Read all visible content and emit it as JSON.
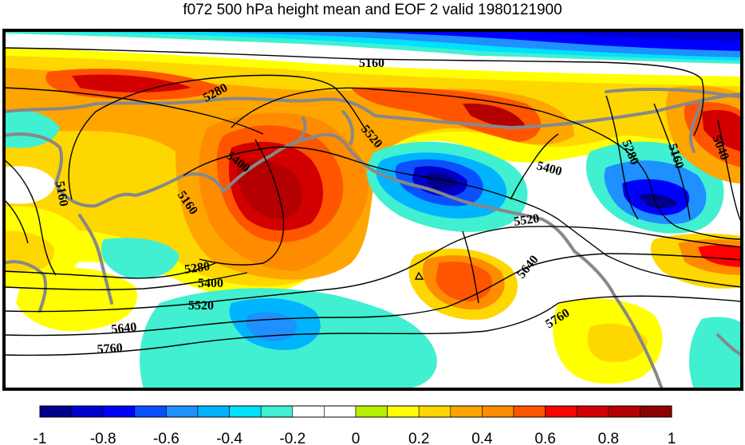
{
  "title": "f072 500 hPa height mean and EOF 2 valid 1980121900",
  "colorbar": {
    "ticks": [
      "-1",
      "-0.8",
      "-0.6",
      "-0.4",
      "-0.2",
      "0",
      "0.2",
      "0.4",
      "0.6",
      "0.8",
      "1"
    ],
    "colors": [
      "#00008b",
      "#0000cd",
      "#0000ff",
      "#0a50ff",
      "#1e90ff",
      "#00b4ff",
      "#00e1ff",
      "#40f0d0",
      "#ffffff",
      "#ffffff",
      "#b4f000",
      "#ffff00",
      "#ffd700",
      "#ffa500",
      "#ff8c00",
      "#ff5500",
      "#ff0000",
      "#d20000",
      "#b40000",
      "#8b0000"
    ]
  },
  "contour_labels": [
    "5160",
    "5280",
    "5400",
    "5520",
    "5400",
    "5160",
    "5280",
    "5160",
    "5040",
    "5520",
    "5160",
    "5160",
    "5280",
    "5400",
    "5520",
    "5640",
    "5760",
    "5640",
    "5760"
  ],
  "colors": {
    "coast": "#888888",
    "contour": "#000000",
    "frame": "#000000"
  }
}
